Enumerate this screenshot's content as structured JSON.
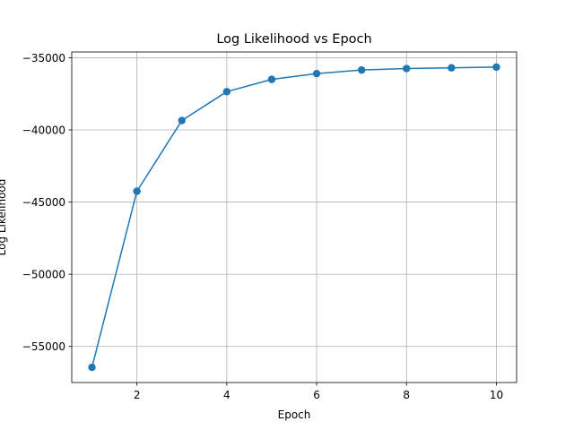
{
  "chart_data": {
    "type": "line",
    "title": "Log Likelihood vs Epoch",
    "xlabel": "Epoch",
    "ylabel": "Log Likelihood",
    "x": [
      1,
      2,
      3,
      4,
      5,
      6,
      7,
      8,
      9,
      10
    ],
    "series": [
      {
        "values": [
          -56450,
          -44250,
          -39350,
          -37350,
          -36500,
          -36100,
          -35850,
          -35750,
          -35700,
          -35650
        ],
        "color": "#1f77b4",
        "marker": "circle"
      }
    ],
    "xticks": [
      2,
      4,
      6,
      8,
      10
    ],
    "yticks": [
      -55000,
      -50000,
      -45000,
      -40000,
      -35000
    ],
    "xtick_labels": [
      "2",
      "4",
      "6",
      "8",
      "10"
    ],
    "ytick_labels": [
      "−55000",
      "−50000",
      "−45000",
      "−40000",
      "−35000"
    ],
    "xlim": [
      0.55,
      10.45
    ],
    "ylim": [
      -57500,
      -34600
    ],
    "grid": true
  }
}
